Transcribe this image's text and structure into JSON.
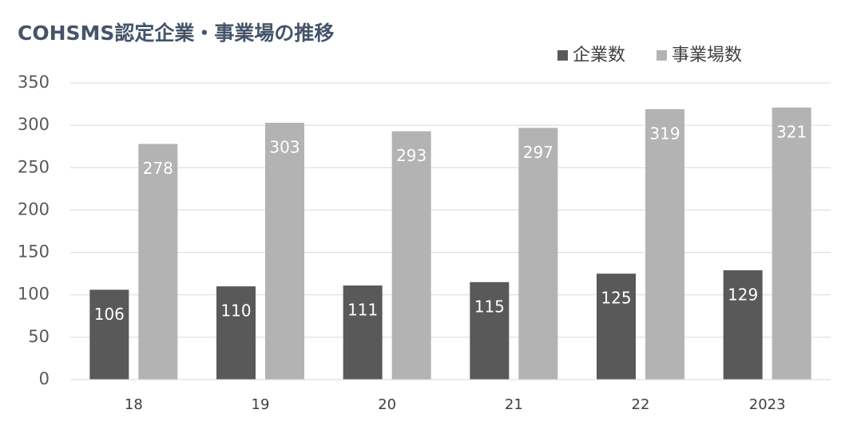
{
  "chart_data": {
    "type": "bar",
    "title": "COHSMS認定企業・事業場の推移",
    "categories": [
      "18",
      "19",
      "20",
      "21",
      "22",
      "2023"
    ],
    "series": [
      {
        "name": "企業数",
        "color": "#595959",
        "values": [
          106,
          110,
          111,
          115,
          125,
          129
        ]
      },
      {
        "name": "事業場数",
        "color": "#b3b3b3",
        "values": [
          278,
          303,
          293,
          297,
          319,
          321
        ]
      }
    ],
    "ylim": [
      0,
      350
    ],
    "yticks": [
      0,
      50,
      100,
      150,
      200,
      250,
      300,
      350
    ],
    "grid": true,
    "legend": "top-right"
  }
}
